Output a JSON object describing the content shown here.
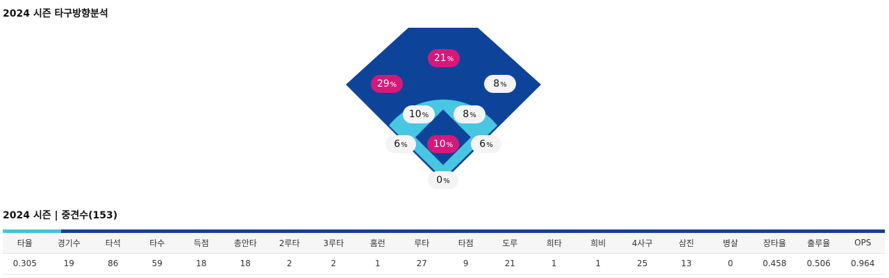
{
  "section1": {
    "title": "2024 시즌 타구방향분석"
  },
  "spray": {
    "unit": "%",
    "colors": {
      "outfield": "#0d449a",
      "infield_arc": "#48c6e2",
      "diamond": "#0d449a",
      "hot": "#d5197a",
      "cold": "#f4f4f4"
    },
    "zones": [
      {
        "id": "center-field",
        "value": "21",
        "level": "hot"
      },
      {
        "id": "left-field",
        "value": "29",
        "level": "hot"
      },
      {
        "id": "right-field",
        "value": "8",
        "level": "cold"
      },
      {
        "id": "shortstop",
        "value": "10",
        "level": "cold"
      },
      {
        "id": "second-base",
        "value": "8",
        "level": "cold"
      },
      {
        "id": "third-base-line",
        "value": "6",
        "level": "cold"
      },
      {
        "id": "pitcher",
        "value": "10",
        "level": "hot"
      },
      {
        "id": "first-base-line",
        "value": "6",
        "level": "cold"
      },
      {
        "id": "catcher",
        "value": "0",
        "level": "cold"
      }
    ]
  },
  "section2": {
    "title": "2024 시즌 | 중견수(153)"
  },
  "stats": {
    "headers": [
      "타율",
      "경기수",
      "타석",
      "타수",
      "득점",
      "총안타",
      "2루타",
      "3루타",
      "홈런",
      "루타",
      "타점",
      "도루",
      "희타",
      "희비",
      "4사구",
      "삼진",
      "병살",
      "장타율",
      "출루율",
      "OPS"
    ],
    "values": [
      "0.305",
      "19",
      "86",
      "59",
      "18",
      "18",
      "2",
      "2",
      "1",
      "27",
      "9",
      "21",
      "1",
      "1",
      "25",
      "13",
      "0",
      "0.458",
      "0.506",
      "0.964"
    ]
  }
}
